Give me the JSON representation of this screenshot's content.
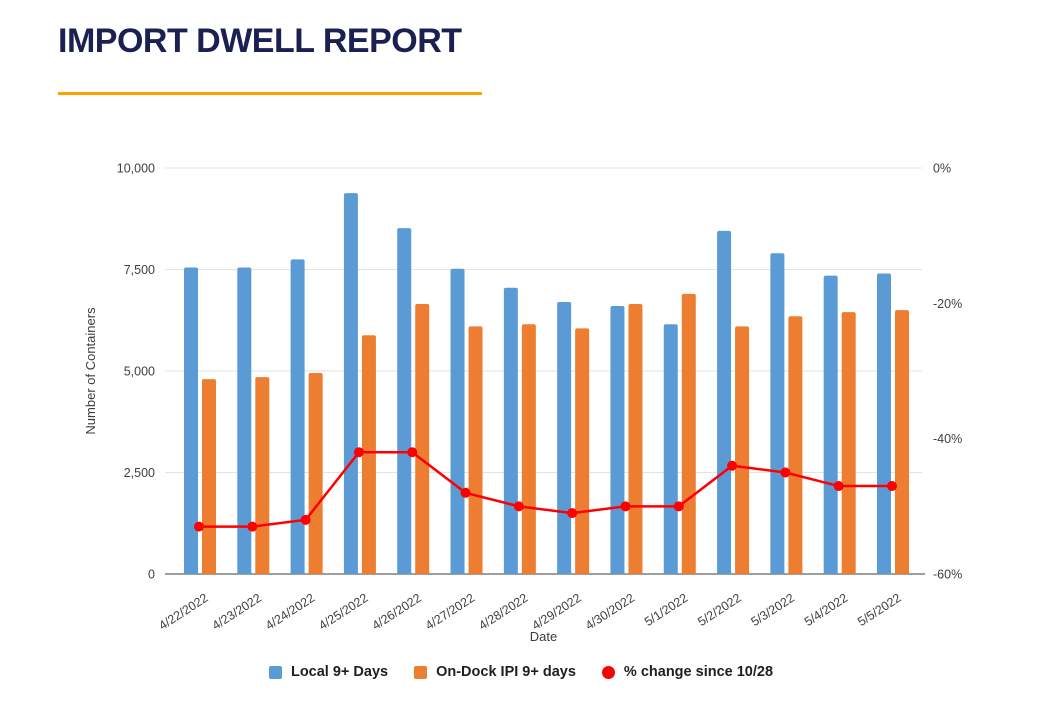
{
  "page": {
    "title": "IMPORT DWELL REPORT"
  },
  "accent": {
    "title_color": "#1A2150",
    "underline_color": "#F7A600"
  },
  "chart_data": {
    "type": "bar",
    "subtype": "grouped-bars-with-line-overlay",
    "title": "IMPORT DWELL REPORT",
    "categories": [
      "4/22/2022",
      "4/23/2022",
      "4/24/2022",
      "4/25/2022",
      "4/26/2022",
      "4/27/2022",
      "4/28/2022",
      "4/29/2022",
      "4/30/2022",
      "5/1/2022",
      "5/2/2022",
      "5/3/2022",
      "5/4/2022",
      "5/5/2022"
    ],
    "series": [
      {
        "name": "Local 9+ Days",
        "kind": "bar",
        "axis": "left",
        "color": "#5B9BD5",
        "values": [
          7550,
          7550,
          7750,
          9380,
          8520,
          7520,
          7050,
          6700,
          6600,
          6150,
          8450,
          7900,
          7350,
          7400
        ]
      },
      {
        "name": "On-Dock IPI 9+ days",
        "kind": "bar",
        "axis": "left",
        "color": "#ED7D31",
        "values": [
          4800,
          4850,
          4950,
          5880,
          6650,
          6100,
          6150,
          6050,
          6650,
          6900,
          6100,
          6350,
          6450,
          6500
        ]
      },
      {
        "name": "% change since 10/28",
        "kind": "line",
        "axis": "right",
        "color": "#FF0000",
        "values": [
          -53,
          -53,
          -52,
          -42,
          -42,
          -48,
          -50,
          -51,
          -50,
          -50,
          -44,
          -45,
          -47,
          -47
        ]
      }
    ],
    "xlabel": "Date",
    "ylabel": "Number of Containers",
    "left_axis": {
      "range": [
        0,
        10000
      ],
      "tick_values": [
        0,
        2500,
        5000,
        7500,
        10000
      ],
      "tick_labels": [
        "0",
        "2,500",
        "5,000",
        "7,500",
        "10,000"
      ]
    },
    "right_axis": {
      "range": [
        0,
        -60
      ],
      "tick_values": [
        0,
        -20,
        -40,
        -60
      ],
      "tick_labels": [
        "0%",
        "-20%",
        "-40%",
        "-60%"
      ]
    },
    "grid": true,
    "legend_position": "bottom",
    "colors": {
      "gridline": "#E3E3E3",
      "axis_line": "#9E9E9E",
      "tick_text": "#404040"
    }
  }
}
